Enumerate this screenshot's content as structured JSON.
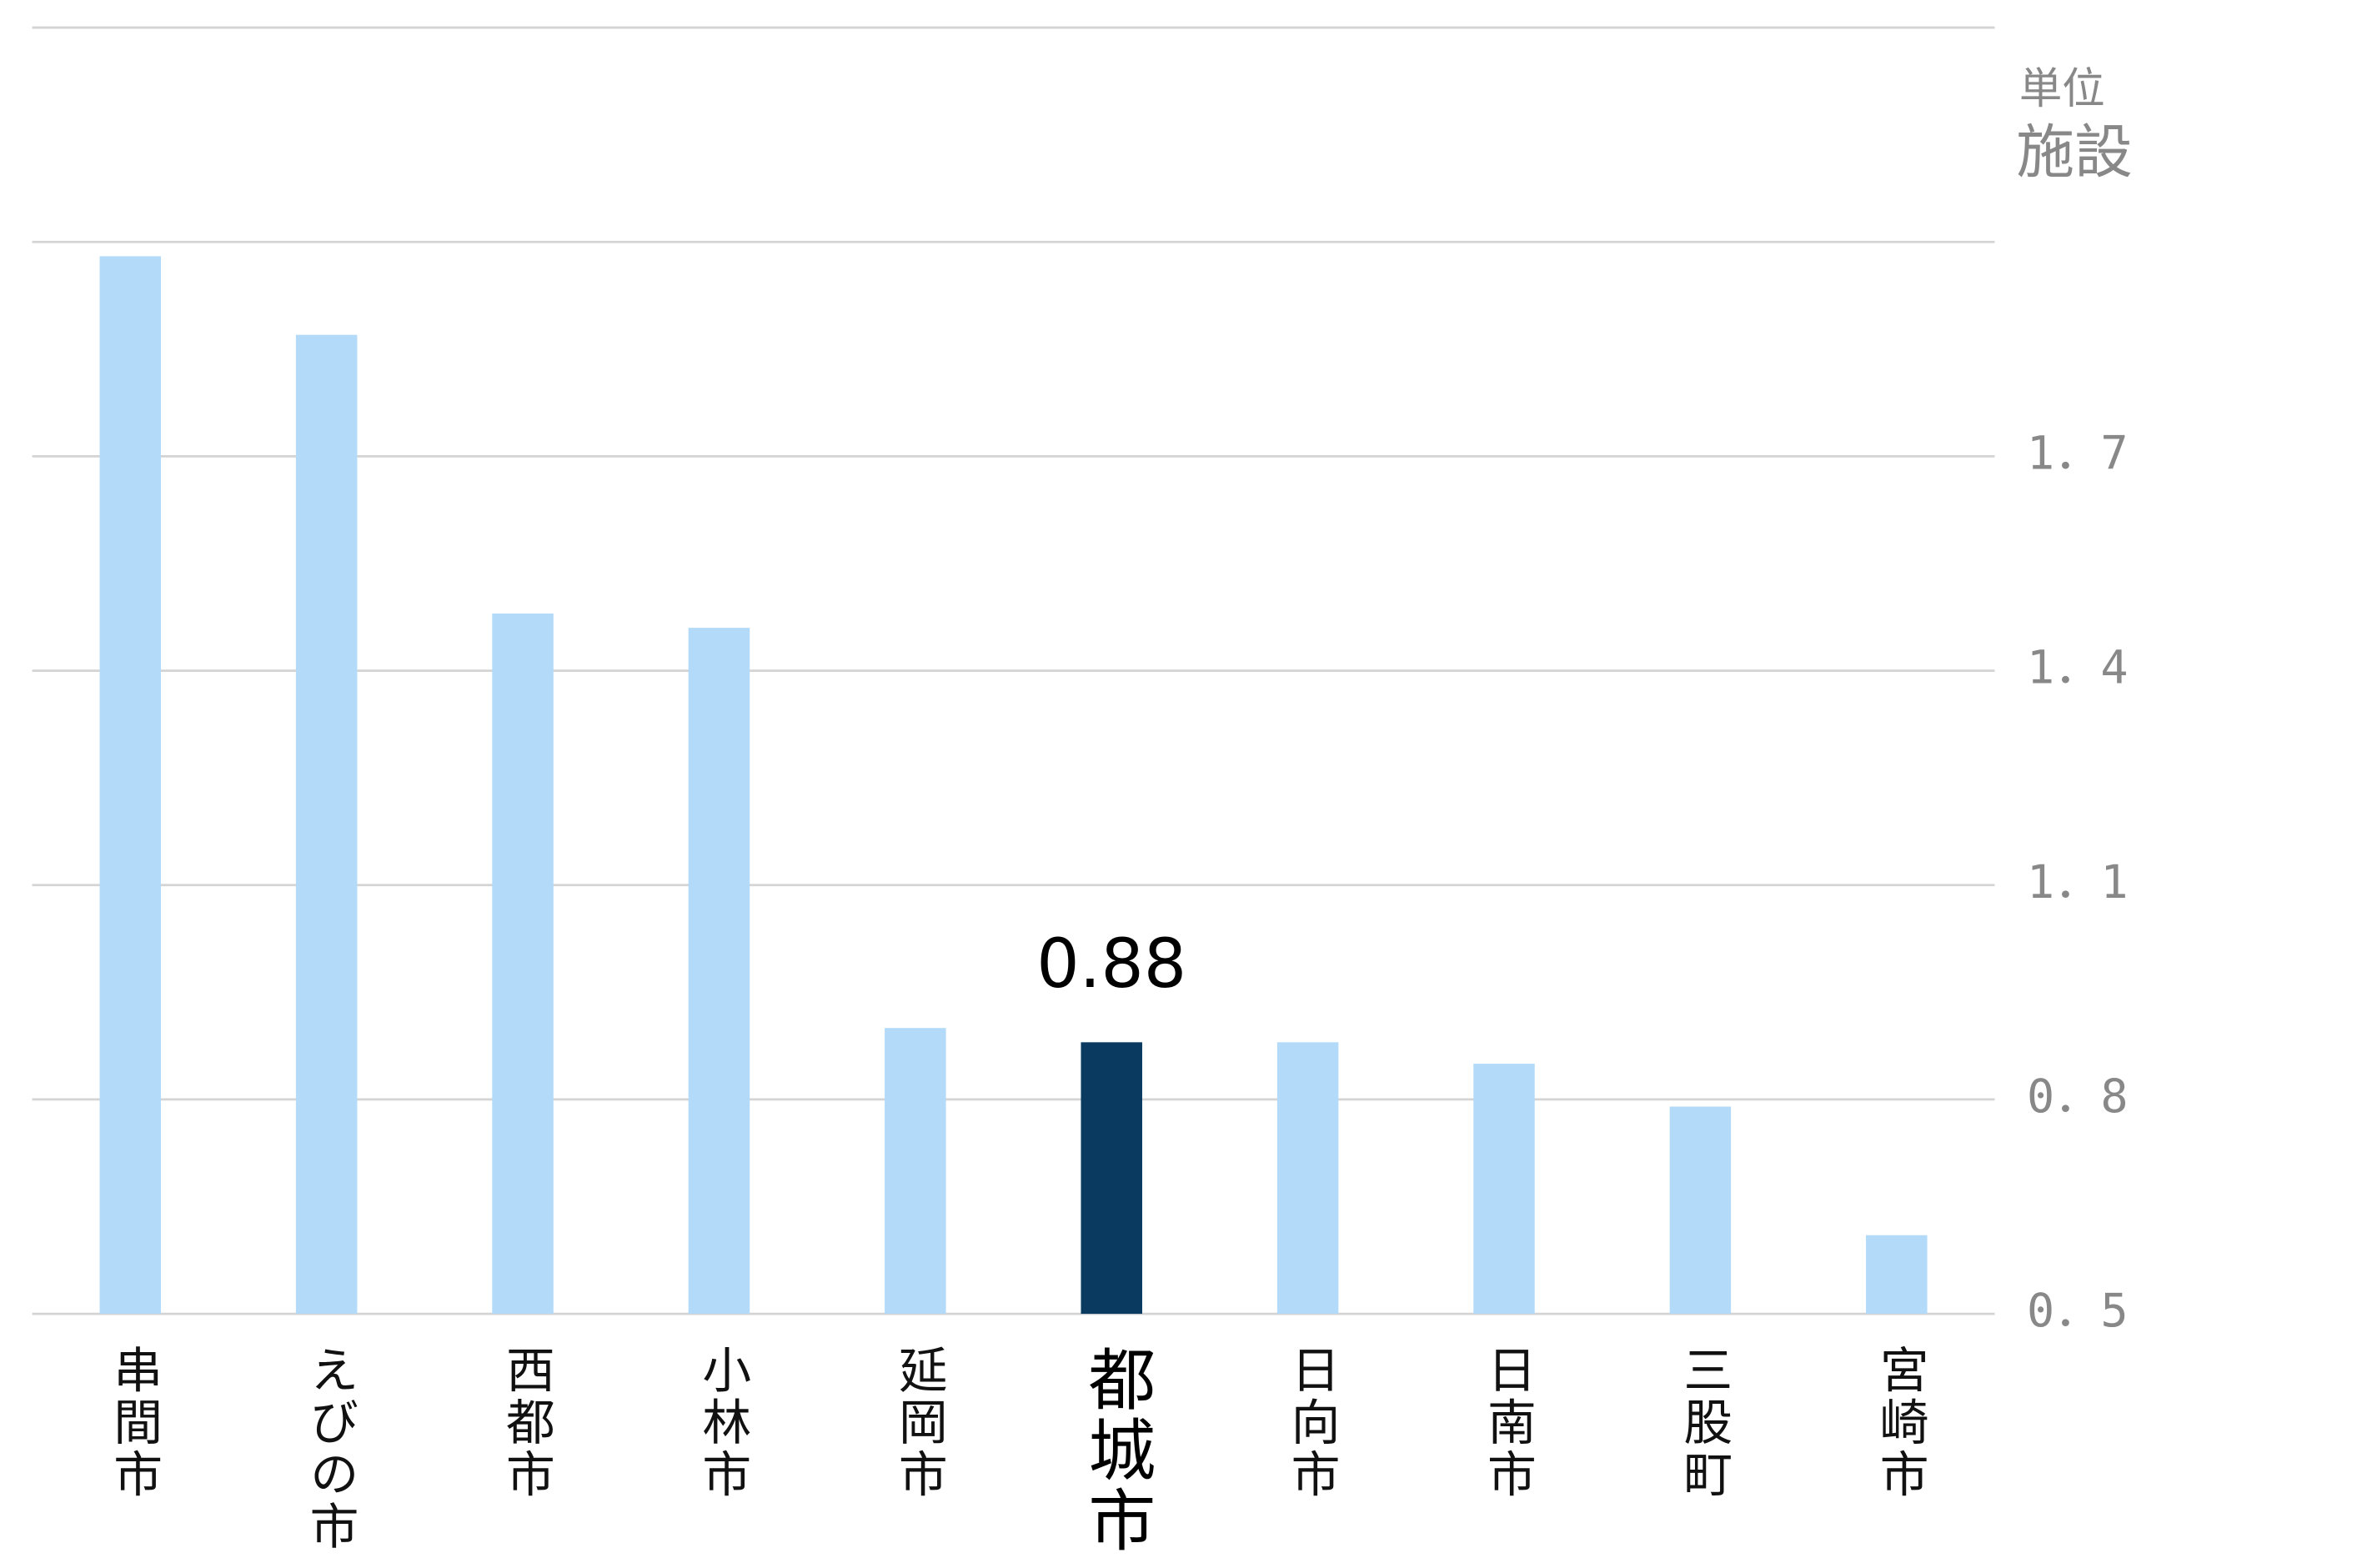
{
  "chart_data": {
    "type": "bar",
    "unit_label": "単位",
    "unit": "施設",
    "categories": [
      "串間市",
      "えびの市",
      "西都市",
      "小林市",
      "延岡市",
      "都城市",
      "日向市",
      "日南市",
      "三股町",
      "宮崎市"
    ],
    "values": [
      1.98,
      1.87,
      1.48,
      1.46,
      0.9,
      0.88,
      0.88,
      0.85,
      0.79,
      0.61
    ],
    "color": "#b3dbf9",
    "highlight_index": 5,
    "highlight_color": "#0a3a60",
    "ylim": [
      0.5,
      2.3
    ],
    "yticks": [
      {
        "value": 0.5,
        "label": "0．5"
      },
      {
        "value": 0.8,
        "label": "0．8"
      },
      {
        "value": 1.1,
        "label": "1．1"
      },
      {
        "value": 1.4,
        "label": "1．4"
      },
      {
        "value": 1.7,
        "label": "1．7"
      }
    ],
    "grid": [
      0.5,
      0.8,
      1.1,
      1.4,
      1.7,
      2.0,
      2.3
    ]
  }
}
